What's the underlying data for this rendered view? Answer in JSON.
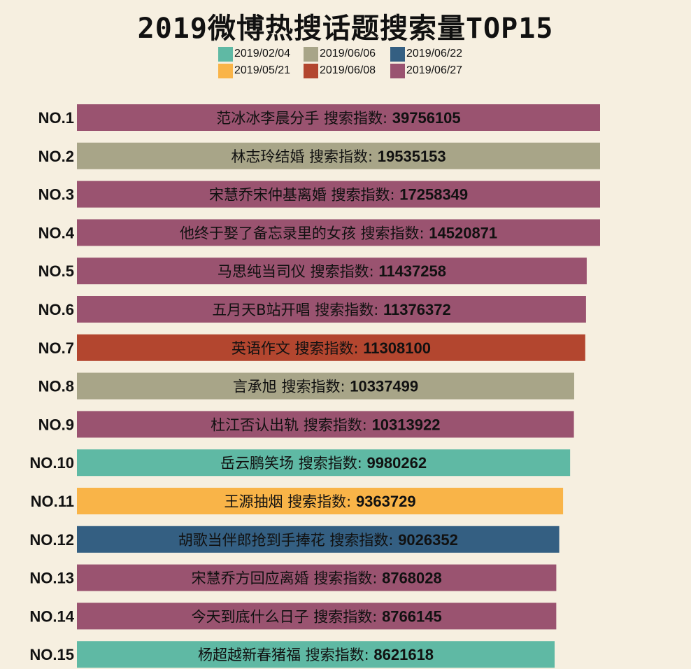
{
  "chart_data": {
    "type": "bar",
    "orientation": "horizontal",
    "title": "2019微博热搜话题搜索量TOP15",
    "value_prefix": "搜索指数: ",
    "legend": [
      {
        "name": "2019/02/04",
        "color": "#5fb9a4"
      },
      {
        "name": "2019/06/06",
        "color": "#a8a588"
      },
      {
        "name": "2019/06/22",
        "color": "#345f82"
      },
      {
        "name": "2019/05/21",
        "color": "#f9b448"
      },
      {
        "name": "2019/06/08",
        "color": "#b3462f"
      },
      {
        "name": "2019/06/27",
        "color": "#9a5370"
      }
    ],
    "bars": [
      {
        "rank": "NO.1",
        "topic": "范冰冰李晨分手",
        "value": 39756105,
        "date": "2019/06/27"
      },
      {
        "rank": "NO.2",
        "topic": "林志玲结婚",
        "value": 19535153,
        "date": "2019/06/06"
      },
      {
        "rank": "NO.3",
        "topic": "宋慧乔宋仲基离婚",
        "value": 17258349,
        "date": "2019/06/27"
      },
      {
        "rank": "NO.4",
        "topic": "他终于娶了备忘录里的女孩",
        "value": 14520871,
        "date": "2019/06/27"
      },
      {
        "rank": "NO.5",
        "topic": "马思纯当司仪",
        "value": 11437258,
        "date": "2019/06/27"
      },
      {
        "rank": "NO.6",
        "topic": "五月天B站开唱",
        "value": 11376372,
        "date": "2019/06/27"
      },
      {
        "rank": "NO.7",
        "topic": "英语作文",
        "value": 11308100,
        "date": "2019/06/08"
      },
      {
        "rank": "NO.8",
        "topic": "言承旭",
        "value": 10337499,
        "date": "2019/06/06"
      },
      {
        "rank": "NO.9",
        "topic": "杜江否认出轨",
        "value": 10313922,
        "date": "2019/06/27"
      },
      {
        "rank": "NO.10",
        "topic": "岳云鹏笑场",
        "value": 9980262,
        "date": "2019/02/04"
      },
      {
        "rank": "NO.11",
        "topic": "王源抽烟",
        "value": 9363729,
        "date": "2019/05/21"
      },
      {
        "rank": "NO.12",
        "topic": "胡歌当伴郎抢到手捧花",
        "value": 9026352,
        "date": "2019/06/22"
      },
      {
        "rank": "NO.13",
        "topic": "宋慧乔方回应离婚",
        "value": 8768028,
        "date": "2019/06/27"
      },
      {
        "rank": "NO.14",
        "topic": "今天到底什么日子",
        "value": 8766145,
        "date": "2019/06/27"
      },
      {
        "rank": "NO.15",
        "topic": "杨超越新春猪福",
        "value": 8621618,
        "date": "2019/02/04"
      }
    ]
  }
}
